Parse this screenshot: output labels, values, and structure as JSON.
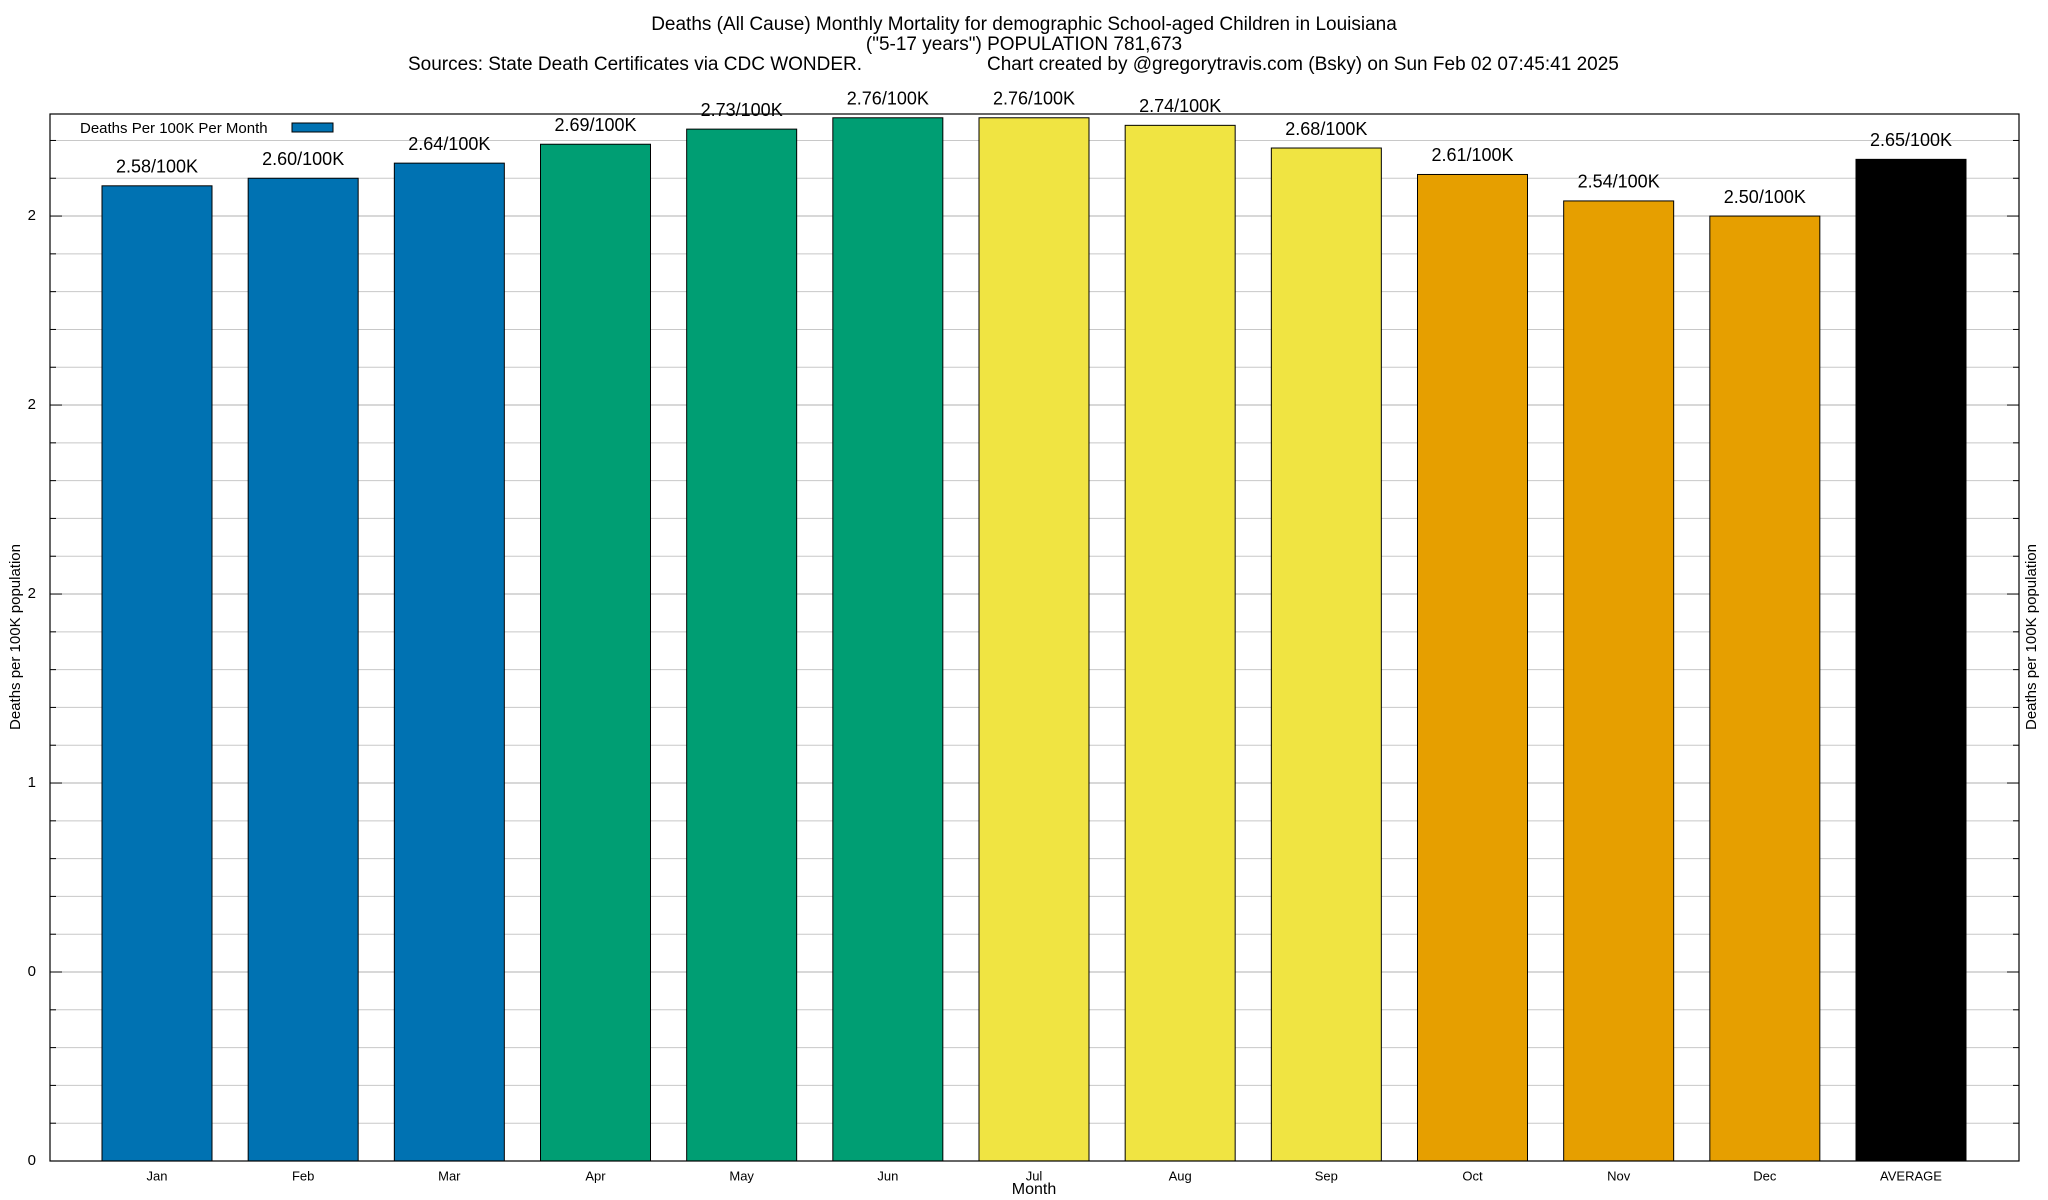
{
  "chart_data": {
    "type": "bar",
    "title": "Deaths (All Cause) Monthly Mortality for demographic School-aged Children in Louisiana",
    "subtitle": "(\"5-17 years\") POPULATION 781,673",
    "sources": "Sources: State Death Certificates via CDC WONDER.",
    "credit": "Chart created by @gregorytravis.com (Bsky) on Sun Feb 02 07:45:41 2025",
    "xlabel": "Month",
    "ylabel": "Deaths per 100K population",
    "y2label": "Deaths per 100K population",
    "categories": [
      "Jan",
      "Feb",
      "Mar",
      "Apr",
      "May",
      "Jun",
      "Jul",
      "Aug",
      "Sep",
      "Oct",
      "Nov",
      "Dec",
      "AVERAGE"
    ],
    "series": [
      {
        "name": "Deaths Per 100K Per Month",
        "color": "#0072b2",
        "values": [
          2.58,
          2.6,
          2.64,
          2.69,
          2.73,
          2.76,
          2.76,
          2.74,
          2.68,
          2.61,
          2.54,
          2.5,
          2.65
        ],
        "value_labels": [
          "2.58/100K",
          "2.60/100K",
          "2.64/100K",
          "2.69/100K",
          "2.73/100K",
          "2.76/100K",
          "2.76/100K",
          "2.74/100K",
          "2.68/100K",
          "2.61/100K",
          "2.54/100K",
          "2.50/100K",
          "2.65/100K"
        ],
        "colors": [
          "#0072b2",
          "#0072b2",
          "#0072b2",
          "#009e73",
          "#009e73",
          "#009e73",
          "#f0e442",
          "#f0e442",
          "#f0e442",
          "#e69f00",
          "#e69f00",
          "#e69f00",
          "#000000"
        ]
      }
    ],
    "ylim": [
      0,
      2.77
    ],
    "yticks": [
      0,
      {
        "value": 0.5,
        "label": "0"
      },
      1,
      {
        "value": 1.5,
        "label": "2"
      },
      2,
      {
        "value": 2.5,
        "label": "2"
      }
    ],
    "yminorticks": [
      0.1,
      0.2,
      0.3,
      0.4,
      0.6,
      0.7,
      0.8,
      0.9,
      1.1,
      1.2,
      1.3,
      1.4,
      1.6,
      1.7,
      1.8,
      1.9,
      2.1,
      2.2,
      2.3,
      2.4,
      2.6,
      2.7
    ],
    "grid": true,
    "legend": "top-left"
  }
}
